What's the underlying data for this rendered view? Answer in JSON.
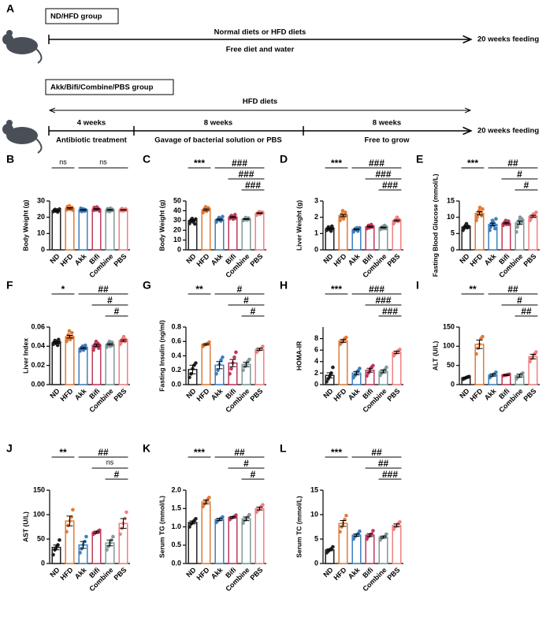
{
  "panel_a": {
    "label": "A",
    "group1": "ND/HFD group",
    "diet1": "Normal diets or HFD diets",
    "sub1": "Free diet and water",
    "end1": "20 weeks feeding",
    "group2": "Akk/Bifi/Combine/PBS group",
    "diet2": "HFD diets",
    "phase1": "4 weeks",
    "phase1_desc": "Antibiotic treatment",
    "phase2": "8 weeks",
    "phase2_desc": "Gavage of bacterial solution or PBS",
    "phase3": "8 weeks",
    "phase3_desc": "Free to grow",
    "end2": "20 weeks feeding"
  },
  "chart_data": [
    {
      "type": "bar",
      "panel": "B",
      "ylabel": "Body Weight (g)",
      "categories": [
        "ND",
        "HFD",
        "Akk",
        "Bifi",
        "Combine",
        "PBS"
      ],
      "colors": [
        "#222222",
        "#e07b39",
        "#3c7fc0",
        "#c0395a",
        "#7f9a9a",
        "#f08080"
      ],
      "values": [
        24,
        25.5,
        24.5,
        25,
        24.5,
        24.5
      ],
      "errors": [
        0.3,
        0.4,
        0.3,
        0.3,
        0.3,
        0.2
      ],
      "points": [
        [
          23.5,
          24.2,
          24.8,
          23.8,
          24.5,
          23.2,
          24.1,
          25
        ],
        [
          24.5,
          26.5,
          25.2,
          27,
          24.8,
          25.8,
          26,
          24.3
        ],
        [
          24,
          25.5,
          23.5,
          24.8,
          25,
          23.8,
          24.6,
          24.2
        ],
        [
          24.2,
          26,
          25.3,
          24.5,
          26.3,
          24.8,
          25.1,
          23.8
        ],
        [
          23.8,
          25.2,
          24.6,
          23.5,
          25.5,
          24.1,
          24.9,
          24.3
        ],
        [
          24,
          24.8,
          25.3,
          23.9,
          24.6,
          24.2,
          25.1,
          24.4
        ]
      ],
      "ylim": [
        0,
        30
      ],
      "yticks": [
        0,
        10,
        20,
        30
      ],
      "annotations": [
        "ns",
        "ns"
      ]
    },
    {
      "type": "bar",
      "panel": "C",
      "ylabel": "Body Weight (g)",
      "categories": [
        "ND",
        "HFD",
        "Akk",
        "Bifi",
        "Combine",
        "PBS"
      ],
      "colors": [
        "#222222",
        "#e07b39",
        "#3c7fc0",
        "#c0395a",
        "#7f9a9a",
        "#f08080"
      ],
      "values": [
        30,
        41,
        31,
        33.5,
        31.5,
        37.5
      ],
      "errors": [
        0.7,
        0.8,
        0.6,
        0.5,
        0.4,
        0.4
      ],
      "points": [
        [
          27,
          29,
          31,
          32,
          28.5,
          30,
          26.5,
          31.5
        ],
        [
          38,
          40,
          42,
          44,
          39.5,
          41,
          43,
          41.5
        ],
        [
          28.5,
          30,
          31,
          33,
          32,
          29.5,
          30.5,
          34
        ],
        [
          32,
          34,
          35,
          33,
          31.5,
          34.5,
          36,
          32.5
        ],
        [
          30,
          31,
          32,
          33,
          30.5,
          31.5,
          32.5,
          31
        ],
        [
          35.5,
          37,
          38,
          39,
          36.5,
          37.5,
          38.5,
          38
        ]
      ],
      "ylim": [
        0,
        50
      ],
      "yticks": [
        0,
        10,
        20,
        30,
        40,
        50
      ],
      "annotations": [
        "***",
        "###",
        "###",
        "###"
      ]
    },
    {
      "type": "bar",
      "panel": "D",
      "ylabel": "Liver Weight (g)",
      "categories": [
        "ND",
        "HFD",
        "Akk",
        "Bifi",
        "Combine",
        "PBS"
      ],
      "colors": [
        "#222222",
        "#e07b39",
        "#3c7fc0",
        "#c0395a",
        "#7f9a9a",
        "#f08080"
      ],
      "values": [
        1.3,
        2.1,
        1.25,
        1.42,
        1.37,
        1.8
      ],
      "errors": [
        0.03,
        0.07,
        0.03,
        0.03,
        0.03,
        0.04
      ],
      "points": [
        [
          1.2,
          1.3,
          1.4,
          1.25,
          1.35,
          1.15,
          1.45,
          1.3
        ],
        [
          1.8,
          2.0,
          2.2,
          2.4,
          1.9,
          2.1,
          2.3,
          2.1
        ],
        [
          1.1,
          1.2,
          1.3,
          1.25,
          1.35,
          1.15,
          1.3,
          1.35
        ],
        [
          1.3,
          1.4,
          1.5,
          1.35,
          1.45,
          1.55,
          1.4,
          1.42
        ],
        [
          1.25,
          1.35,
          1.4,
          1.3,
          1.45,
          1.5,
          1.3,
          1.4
        ],
        [
          1.6,
          1.7,
          1.8,
          1.9,
          2.0,
          1.75,
          1.85,
          1.8
        ]
      ],
      "ylim": [
        0,
        3
      ],
      "yticks": [
        0,
        1,
        2,
        3
      ],
      "annotations": [
        "***",
        "###",
        "###",
        "###"
      ]
    },
    {
      "type": "bar",
      "panel": "E",
      "ylabel": "Fasting Blood Glucose (mmol/L)",
      "categories": [
        "ND",
        "HFD",
        "Akk",
        "Bifi",
        "Combine",
        "PBS"
      ],
      "colors": [
        "#222222",
        "#e07b39",
        "#3c7fc0",
        "#c0395a",
        "#7f9a9a",
        "#f08080"
      ],
      "values": [
        7,
        11.2,
        7.8,
        8.2,
        8.3,
        10.3
      ],
      "errors": [
        0.3,
        0.5,
        0.4,
        0.2,
        0.5,
        0.3
      ],
      "points": [
        [
          6,
          6.5,
          7,
          7.5,
          8,
          6.8,
          7.2,
          7
        ],
        [
          9,
          10,
          11,
          12,
          13,
          11.5,
          10.5,
          12.5
        ],
        [
          6,
          7,
          8,
          9,
          8.5,
          7.5,
          6.5,
          9.5
        ],
        [
          7.5,
          8,
          8.5,
          9,
          7.8,
          8.2,
          8.8,
          7.8
        ],
        [
          5.5,
          7,
          8,
          9,
          10,
          8.5,
          9.5,
          9
        ],
        [
          9,
          9.5,
          10,
          10.5,
          11,
          10.8,
          10.2,
          11.5
        ]
      ],
      "ylim": [
        0,
        15
      ],
      "yticks": [
        0,
        5,
        10,
        15
      ],
      "annotations": [
        "***",
        "##",
        "#",
        "#"
      ]
    },
    {
      "type": "bar",
      "panel": "F",
      "ylabel": "Liver Index",
      "categories": [
        "ND",
        "HFD",
        "Akk",
        "Bifi",
        "Combine",
        "PBS"
      ],
      "colors": [
        "#222222",
        "#e07b39",
        "#3c7fc0",
        "#c0395a",
        "#7f9a9a",
        "#f08080"
      ],
      "values": [
        0.044,
        0.05,
        0.038,
        0.041,
        0.042,
        0.046
      ],
      "errors": [
        0.0007,
        0.0014,
        0.0007,
        0.001,
        0.0007,
        0.0009
      ],
      "points": [
        [
          0.042,
          0.044,
          0.046,
          0.043,
          0.045,
          0.041,
          0.047,
          0.044
        ],
        [
          0.045,
          0.048,
          0.052,
          0.056,
          0.047,
          0.05,
          0.054,
          0.049
        ],
        [
          0.035,
          0.037,
          0.039,
          0.04,
          0.036,
          0.038,
          0.041,
          0.038
        ],
        [
          0.036,
          0.039,
          0.042,
          0.045,
          0.04,
          0.043,
          0.038,
          0.041
        ],
        [
          0.039,
          0.041,
          0.043,
          0.045,
          0.04,
          0.042,
          0.044,
          0.041
        ],
        [
          0.042,
          0.044,
          0.046,
          0.048,
          0.05,
          0.045,
          0.047,
          0.046
        ]
      ],
      "ylim": [
        0,
        0.06
      ],
      "yticks": [
        {
          "value": 0,
          "label": "0.00"
        },
        {
          "value": 0.02,
          "label": "0.02"
        },
        {
          "value": 0.04,
          "label": "0.04"
        },
        {
          "value": 0.06,
          "label": "0.06"
        }
      ],
      "annotations": [
        "*",
        "##",
        "#",
        "#"
      ]
    },
    {
      "type": "bar",
      "panel": "G",
      "ylabel": "Fasting Insulin (ng/ml)",
      "categories": [
        "ND",
        "HFD",
        "Akk",
        "Bifi",
        "Combine",
        "PBS"
      ],
      "colors": [
        "#222222",
        "#e07b39",
        "#3c7fc0",
        "#c0395a",
        "#7f9a9a",
        "#f08080"
      ],
      "values": [
        0.21,
        0.56,
        0.27,
        0.3,
        0.28,
        0.49
      ],
      "errors": [
        0.06,
        0.01,
        0.05,
        0.05,
        0.03,
        0.015
      ],
      "points": [
        [
          0.1,
          0.15,
          0.22,
          0.27,
          0.3
        ],
        [
          0.53,
          0.55,
          0.56,
          0.57,
          0.59
        ],
        [
          0.15,
          0.2,
          0.28,
          0.34,
          0.38
        ],
        [
          0.15,
          0.22,
          0.3,
          0.38,
          0.45
        ],
        [
          0.2,
          0.25,
          0.28,
          0.32,
          0.35
        ],
        [
          0.45,
          0.47,
          0.49,
          0.5,
          0.53
        ]
      ],
      "ylim": [
        0,
        0.8
      ],
      "yticks": [
        {
          "value": 0,
          "label": "0.0"
        },
        0.2,
        0.4,
        0.6,
        0.8
      ],
      "annotations": [
        "**",
        "#",
        "#",
        "#"
      ]
    },
    {
      "type": "bar",
      "panel": "H",
      "ylabel": "HOMA-IR",
      "categories": [
        "ND",
        "HFD",
        "Akk",
        "Bifi",
        "Combine",
        "PBS"
      ],
      "colors": [
        "#222222",
        "#e07b39",
        "#3c7fc0",
        "#c0395a",
        "#7f9a9a",
        "#f08080"
      ],
      "values": [
        1.6,
        7.6,
        2,
        2.5,
        2.3,
        5.6
      ],
      "errors": [
        0.45,
        0.25,
        0.3,
        0.35,
        0.25,
        0.2
      ],
      "points": [
        [
          0.5,
          1,
          1.5,
          2,
          3
        ],
        [
          7,
          7.3,
          7.6,
          8,
          8.2
        ],
        [
          1.2,
          1.6,
          2,
          2.4,
          2.8
        ],
        [
          1.5,
          2,
          2.5,
          3,
          3.3
        ],
        [
          1.6,
          2,
          2.3,
          2.6,
          3
        ],
        [
          5,
          5.3,
          5.6,
          5.9,
          6.1
        ]
      ],
      "ylim": [
        0,
        10
      ],
      "yticks": [
        0,
        2,
        4,
        6,
        8
      ],
      "annotations": [
        "***",
        "###",
        "###",
        "###"
      ]
    },
    {
      "type": "bar",
      "panel": "I",
      "ylabel": "ALT (U/L)",
      "categories": [
        "ND",
        "HFD",
        "Akk",
        "Bifi",
        "Combine",
        "PBS"
      ],
      "colors": [
        "#222222",
        "#e07b39",
        "#3c7fc0",
        "#c0395a",
        "#7f9a9a",
        "#f08080"
      ],
      "values": [
        18,
        105,
        25,
        25,
        23,
        73
      ],
      "errors": [
        1.5,
        11,
        3,
        1,
        4,
        6
      ],
      "points": [
        [
          14,
          16,
          18,
          20,
          21
        ],
        [
          80,
          95,
          105,
          120,
          125
        ],
        [
          18,
          22,
          25,
          28,
          32
        ],
        [
          23,
          24,
          25,
          26,
          27
        ],
        [
          15,
          20,
          23,
          27,
          30
        ],
        [
          60,
          68,
          73,
          80,
          85
        ]
      ],
      "ylim": [
        0,
        150
      ],
      "yticks": [
        0,
        50,
        100,
        150
      ],
      "annotations": [
        "**",
        "##",
        "#",
        "##"
      ]
    },
    {
      "type": "bar",
      "panel": "J",
      "ylabel": "AST (U/L)",
      "categories": [
        "ND",
        "HFD",
        "Akk",
        "Bifi",
        "Combine",
        "PBS"
      ],
      "colors": [
        "#222222",
        "#e07b39",
        "#3c7fc0",
        "#c0395a",
        "#7f9a9a",
        "#f08080"
      ],
      "values": [
        33,
        87,
        38,
        64,
        42,
        82
      ],
      "errors": [
        5,
        10,
        7,
        2,
        6,
        10
      ],
      "points": [
        [
          18,
          28,
          33,
          38,
          48
        ],
        [
          65,
          78,
          87,
          95,
          110
        ],
        [
          22,
          30,
          38,
          45,
          55
        ],
        [
          60,
          62,
          64,
          66,
          68
        ],
        [
          28,
          35,
          42,
          48,
          55
        ],
        [
          60,
          72,
          82,
          92,
          105
        ]
      ],
      "ylim": [
        0,
        150
      ],
      "yticks": [
        0,
        50,
        100,
        150
      ],
      "annotations": [
        "**",
        "##",
        "ns",
        "#"
      ]
    },
    {
      "type": "bar",
      "panel": "K",
      "ylabel": "Serum TG (mmol/L)",
      "categories": [
        "ND",
        "HFD",
        "Akk",
        "Bifi",
        "Combine",
        "PBS"
      ],
      "colors": [
        "#222222",
        "#e07b39",
        "#3c7fc0",
        "#c0395a",
        "#7f9a9a",
        "#f08080"
      ],
      "values": [
        1.12,
        1.68,
        1.2,
        1.26,
        1.22,
        1.5
      ],
      "errors": [
        0.04,
        0.05,
        0.03,
        0.02,
        0.05,
        0.04
      ],
      "points": [
        [
          1.0,
          1.08,
          1.12,
          1.17,
          1.22
        ],
        [
          1.55,
          1.62,
          1.68,
          1.75,
          1.8
        ],
        [
          1.12,
          1.17,
          1.2,
          1.23,
          1.27
        ],
        [
          1.2,
          1.24,
          1.26,
          1.28,
          1.32
        ],
        [
          1.1,
          1.18,
          1.22,
          1.27,
          1.33
        ],
        [
          1.4,
          1.45,
          1.5,
          1.55,
          1.6
        ]
      ],
      "ylim": [
        0,
        2
      ],
      "yticks": [
        {
          "value": 0,
          "label": "0.0"
        },
        0.5,
        {
          "value": 1,
          "label": "1.0"
        },
        1.5,
        {
          "value": 2,
          "label": "2.0"
        }
      ],
      "annotations": [
        "***",
        "##",
        "#",
        "#"
      ]
    },
    {
      "type": "bar",
      "panel": "L",
      "ylabel": "Serum TC (mmol/L)",
      "categories": [
        "ND",
        "HFD",
        "Akk",
        "Bifi",
        "Combine",
        "PBS"
      ],
      "colors": [
        "#222222",
        "#e07b39",
        "#3c7fc0",
        "#c0395a",
        "#7f9a9a",
        "#f08080"
      ],
      "values": [
        2.8,
        8.2,
        5.8,
        5.8,
        5.4,
        7.8
      ],
      "errors": [
        0.2,
        0.6,
        0.25,
        0.3,
        0.2,
        0.3
      ],
      "points": [
        [
          2.2,
          2.5,
          2.8,
          3,
          3.4
        ],
        [
          6.5,
          7.5,
          8.2,
          9,
          9.8
        ],
        [
          5,
          5.5,
          5.8,
          6.1,
          6.6
        ],
        [
          5,
          5.5,
          5.8,
          6,
          6.7
        ],
        [
          4.8,
          5.2,
          5.4,
          5.6,
          6
        ],
        [
          7,
          7.5,
          7.8,
          8.2,
          8.5
        ]
      ],
      "ylim": [
        0,
        15
      ],
      "yticks": [
        0,
        5,
        10,
        15
      ],
      "annotations": [
        "***",
        "##",
        "##",
        "###"
      ]
    }
  ]
}
